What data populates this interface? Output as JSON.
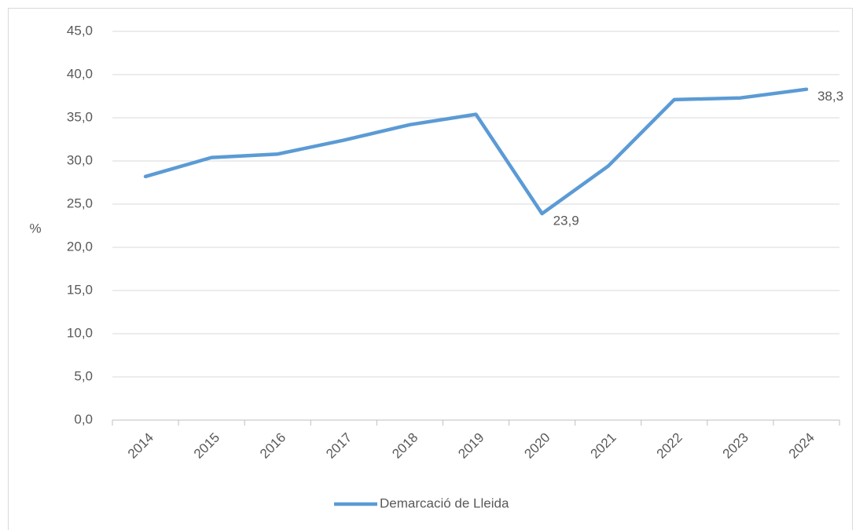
{
  "chart_data": {
    "type": "line",
    "y_label": "%",
    "categories": [
      "2014",
      "2015",
      "2016",
      "2017",
      "2018",
      "2019",
      "2020",
      "2021",
      "2022",
      "2023",
      "2024"
    ],
    "series": [
      {
        "name": "Demarcació de Lleida",
        "color": "#5b9bd5",
        "values": [
          28.2,
          30.4,
          30.8,
          32.4,
          34.2,
          35.4,
          23.9,
          29.4,
          37.1,
          37.3,
          38.3
        ],
        "value_labels": [
          null,
          null,
          null,
          null,
          null,
          null,
          "23,9",
          null,
          null,
          null,
          "38,3"
        ]
      }
    ],
    "ylim": [
      0,
      45
    ],
    "yticks": [
      {
        "value": 0,
        "label": "0,0"
      },
      {
        "value": 5,
        "label": "5,0"
      },
      {
        "value": 10,
        "label": "10,0"
      },
      {
        "value": 15,
        "label": "15,0"
      },
      {
        "value": 20,
        "label": "20,0"
      },
      {
        "value": 25,
        "label": "25,0"
      },
      {
        "value": 30,
        "label": "30,0"
      },
      {
        "value": 35,
        "label": "35,0"
      },
      {
        "value": 40,
        "label": "40,0"
      },
      {
        "value": 45,
        "label": "45,0"
      }
    ],
    "grid": true,
    "legend": "bottom"
  }
}
